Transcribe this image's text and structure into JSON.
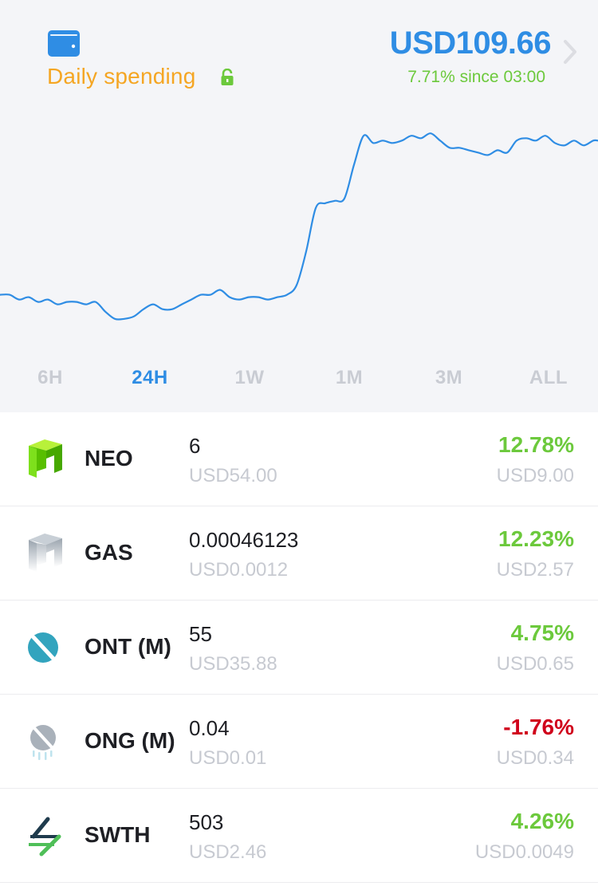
{
  "header": {
    "wallet_label": "Daily spending",
    "balance": "USD109.66",
    "since": "7.71% since 03:00"
  },
  "chart_data": {
    "type": "line",
    "x": [
      0,
      12,
      24,
      36,
      48,
      60,
      72,
      84,
      96,
      108,
      120,
      132,
      144,
      156,
      168,
      180,
      192,
      204,
      216,
      228,
      240,
      252,
      264,
      276,
      288,
      300,
      312,
      324,
      336,
      348,
      360,
      372,
      384,
      396,
      408,
      420,
      432,
      444,
      456,
      468,
      480,
      492,
      504,
      516,
      528,
      540,
      552,
      564,
      576,
      588,
      600,
      612,
      624,
      636,
      648,
      660,
      672,
      684,
      696,
      708,
      720,
      732,
      744,
      750
    ],
    "y": [
      82,
      82,
      80,
      81,
      79,
      80,
      78,
      79,
      79,
      78,
      79,
      75,
      72,
      72,
      73,
      76,
      78,
      76,
      76,
      78,
      80,
      82,
      82,
      84,
      81,
      80,
      81,
      81,
      80,
      81,
      82,
      86,
      100,
      118,
      120,
      121,
      122,
      136,
      148,
      145,
      146,
      145,
      146,
      148,
      147,
      149,
      146,
      143,
      143,
      142,
      141,
      140,
      142,
      141,
      146,
      147,
      146,
      148,
      145,
      144,
      146,
      144,
      146,
      146
    ],
    "ylim": [
      60,
      160
    ],
    "grid": false
  },
  "tabs": [
    "6H",
    "24H",
    "1W",
    "1M",
    "3M",
    "ALL"
  ],
  "active_tab": "24H",
  "coins": [
    {
      "name": "NEO",
      "amount": "6",
      "usd": "USD54.00",
      "pct": "12.78%",
      "change": "USD9.00",
      "trend": "up",
      "icon": "neo-icon"
    },
    {
      "name": "GAS",
      "amount": "0.00046123",
      "usd": "USD0.0012",
      "pct": "12.23%",
      "change": "USD2.57",
      "trend": "up",
      "icon": "gas-icon"
    },
    {
      "name": "ONT (M)",
      "amount": "55",
      "usd": "USD35.88",
      "pct": "4.75%",
      "change": "USD0.65",
      "trend": "up",
      "icon": "ont-icon"
    },
    {
      "name": "ONG (M)",
      "amount": "0.04",
      "usd": "USD0.01",
      "pct": "-1.76%",
      "change": "USD0.34",
      "trend": "down",
      "icon": "ong-icon"
    },
    {
      "name": "SWTH",
      "amount": "503",
      "usd": "USD2.46",
      "pct": "4.26%",
      "change": "USD0.0049",
      "trend": "up",
      "icon": "swth-icon"
    }
  ],
  "colors": {
    "accent": "#2f8de4",
    "wallet_label": "#f5a623",
    "positive": "#6cc93c",
    "negative": "#d0021b",
    "muted": "#c7cad1"
  }
}
